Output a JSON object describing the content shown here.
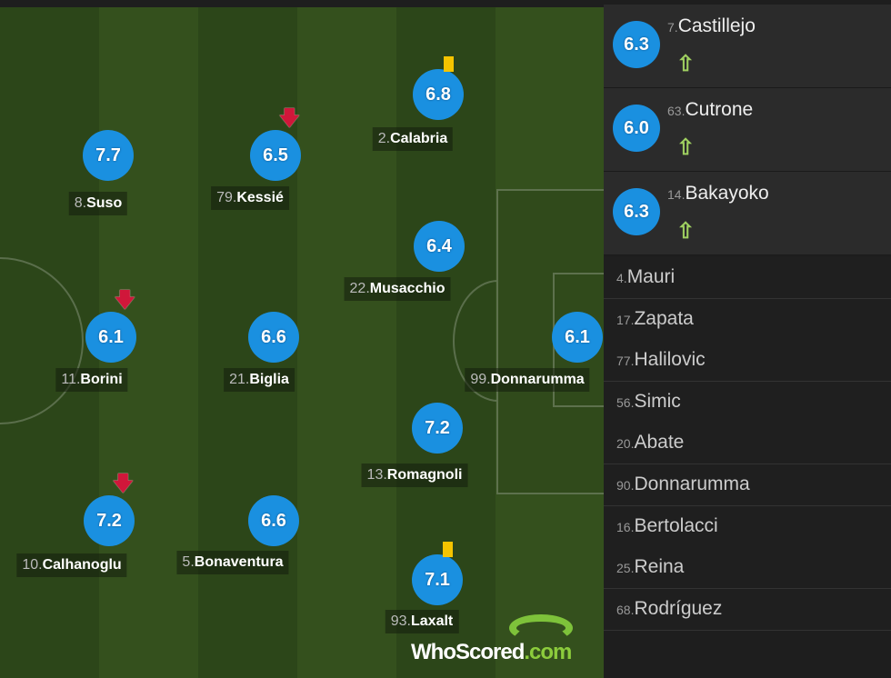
{
  "lineup": [
    {
      "num": "8.",
      "name": "Suso",
      "rating": "7.7"
    },
    {
      "num": "79.",
      "name": "Kessié",
      "rating": "6.5",
      "subbed_off": true
    },
    {
      "num": "2.",
      "name": "Calabria",
      "rating": "6.8",
      "yellow_card": true
    },
    {
      "num": "22.",
      "name": "Musacchio",
      "rating": "6.4"
    },
    {
      "num": "11.",
      "name": "Borini",
      "rating": "6.1",
      "subbed_off": true
    },
    {
      "num": "21.",
      "name": "Biglia",
      "rating": "6.6"
    },
    {
      "num": "99.",
      "name": "Donnarumma",
      "rating": "6.1"
    },
    {
      "num": "13.",
      "name": "Romagnoli",
      "rating": "7.2"
    },
    {
      "num": "10.",
      "name": "Calhanoglu",
      "rating": "7.2",
      "subbed_off": true
    },
    {
      "num": "5.",
      "name": "Bonaventura",
      "rating": "6.6"
    },
    {
      "num": "93.",
      "name": "Laxalt",
      "rating": "7.1",
      "yellow_card": true
    }
  ],
  "subs": [
    {
      "num": "7.",
      "name": "Castillejo",
      "rating": "6.3"
    },
    {
      "num": "63.",
      "name": "Cutrone",
      "rating": "6.0"
    },
    {
      "num": "14.",
      "name": "Bakayoko",
      "rating": "6.3"
    }
  ],
  "bench": [
    {
      "num": "4.",
      "name": "Mauri"
    },
    {
      "num": "17.",
      "name": "Zapata"
    },
    {
      "num": "77.",
      "name": "Halilovic"
    },
    {
      "num": "56.",
      "name": "Simic"
    },
    {
      "num": "20.",
      "name": "Abate"
    },
    {
      "num": "90.",
      "name": "Donnarumma"
    },
    {
      "num": "16.",
      "name": "Bertolacci"
    },
    {
      "num": "25.",
      "name": "Reina"
    },
    {
      "num": "68.",
      "name": "Rodríguez"
    }
  ],
  "logo": {
    "a": "Who",
    "b": "Scored",
    ".com": ".com"
  },
  "colors": {
    "rating": "#1a90e0",
    "pitch": "#304a1b",
    "yellow_card": "#f5c400",
    "sub_off": "#d0173a",
    "sub_on": "#9fd060"
  }
}
